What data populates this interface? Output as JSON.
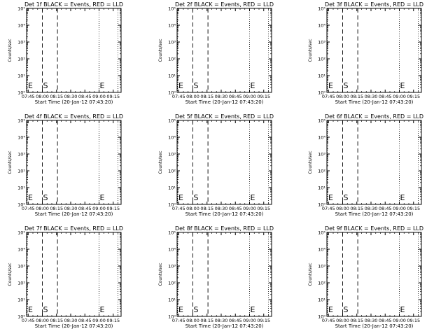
{
  "background": "#ffffff",
  "foreground": "#000000",
  "chart_data": [
    {
      "type": "line",
      "title": "Det 1f BLACK = Events, RED = LLD",
      "ylabel": "Counts/sec",
      "xlabel": "Start Time (20-Jan-12 07:43:20)",
      "x_ticks": [
        "07:45",
        "08:00",
        "08:15",
        "08:30",
        "08:45",
        "09:00",
        "09:15"
      ],
      "y_ticks": [
        "10⁰",
        "10¹",
        "10²",
        "10³",
        "10⁴",
        "10⁵"
      ],
      "y_scale": "log",
      "series": [],
      "markers": [
        {
          "label": "E",
          "time": "07:43"
        },
        {
          "label": "S",
          "time": "08:00"
        },
        {
          "label": "E",
          "time": "09:00"
        }
      ]
    },
    {
      "type": "line",
      "title": "Det 2f BLACK = Events, RED = LLD",
      "ylabel": "Counts/sec",
      "xlabel": "Start Time (20-Jan-12 07:43:20)",
      "x_ticks": [
        "07:45",
        "08:00",
        "08:15",
        "08:30",
        "08:45",
        "09:00",
        "09:15"
      ],
      "y_ticks": [
        "10⁰",
        "10¹",
        "10²",
        "10³",
        "10⁴",
        "10⁵"
      ],
      "y_scale": "log",
      "series": [],
      "markers": [
        {
          "label": "E",
          "time": "07:43"
        },
        {
          "label": "S",
          "time": "08:00"
        },
        {
          "label": "E",
          "time": "09:00"
        }
      ]
    },
    {
      "type": "line",
      "title": "Det 3f BLACK = Events, RED = LLD",
      "ylabel": "Counts/sec",
      "xlabel": "Start Time (20-Jan-12 07:43:20)",
      "x_ticks": [
        "07:45",
        "08:00",
        "08:15",
        "08:30",
        "08:45",
        "09:00",
        "09:15"
      ],
      "y_ticks": [
        "10⁰",
        "10¹",
        "10²",
        "10³",
        "10⁴",
        "10⁵"
      ],
      "y_scale": "log",
      "series": [],
      "markers": [
        {
          "label": "E",
          "time": "07:43"
        },
        {
          "label": "S",
          "time": "08:00"
        },
        {
          "label": "E",
          "time": "09:00"
        }
      ]
    },
    {
      "type": "line",
      "title": "Det 4f BLACK = Events, RED = LLD",
      "ylabel": "Counts/sec",
      "xlabel": "Start Time (20-Jan-12 07:43:20)",
      "x_ticks": [
        "07:45",
        "08:00",
        "08:15",
        "08:30",
        "08:45",
        "09:00",
        "09:15"
      ],
      "y_ticks": [
        "10⁰",
        "10¹",
        "10²",
        "10³",
        "10⁴",
        "10⁵"
      ],
      "y_scale": "log",
      "series": [],
      "markers": [
        {
          "label": "E",
          "time": "07:43"
        },
        {
          "label": "S",
          "time": "08:00"
        },
        {
          "label": "E",
          "time": "09:00"
        }
      ]
    },
    {
      "type": "line",
      "title": "Det 5f BLACK = Events, RED = LLD",
      "ylabel": "Counts/sec",
      "xlabel": "Start Time (20-Jan-12 07:43:20)",
      "x_ticks": [
        "07:45",
        "08:00",
        "08:15",
        "08:30",
        "08:45",
        "09:00",
        "09:15"
      ],
      "y_ticks": [
        "10⁰",
        "10¹",
        "10²",
        "10³",
        "10⁴",
        "10⁵"
      ],
      "y_scale": "log",
      "series": [],
      "markers": [
        {
          "label": "E",
          "time": "07:43"
        },
        {
          "label": "S",
          "time": "08:00"
        },
        {
          "label": "E",
          "time": "09:00"
        }
      ]
    },
    {
      "type": "line",
      "title": "Det 6f BLACK = Events, RED = LLD",
      "ylabel": "Counts/sec",
      "xlabel": "Start Time (20-Jan-12 07:43:20)",
      "x_ticks": [
        "07:45",
        "08:00",
        "08:15",
        "08:30",
        "08:45",
        "09:00",
        "09:15"
      ],
      "y_ticks": [
        "10⁰",
        "10¹",
        "10²",
        "10³",
        "10⁴",
        "10⁵"
      ],
      "y_scale": "log",
      "series": [],
      "markers": [
        {
          "label": "E",
          "time": "07:43"
        },
        {
          "label": "S",
          "time": "08:00"
        },
        {
          "label": "E",
          "time": "09:00"
        }
      ]
    },
    {
      "type": "line",
      "title": "Det 7f BLACK = Events, RED = LLD",
      "ylabel": "Counts/sec",
      "xlabel": "Start Time (20-Jan-12 07:43:20)",
      "x_ticks": [
        "07:45",
        "08:00",
        "08:15",
        "08:30",
        "08:45",
        "09:00",
        "09:15"
      ],
      "y_ticks": [
        "10⁰",
        "10¹",
        "10²",
        "10³",
        "10⁴",
        "10⁵"
      ],
      "y_scale": "log",
      "series": [],
      "markers": [
        {
          "label": "E",
          "time": "07:43"
        },
        {
          "label": "S",
          "time": "08:00"
        },
        {
          "label": "E",
          "time": "09:00"
        }
      ]
    },
    {
      "type": "line",
      "title": "Det 8f BLACK = Events, RED = LLD",
      "ylabel": "Counts/sec",
      "xlabel": "Start Time (20-Jan-12 07:43:20)",
      "x_ticks": [
        "07:45",
        "08:00",
        "08:15",
        "08:30",
        "08:45",
        "09:00",
        "09:15"
      ],
      "y_ticks": [
        "10⁰",
        "10¹",
        "10²",
        "10³",
        "10⁴",
        "10⁵"
      ],
      "y_scale": "log",
      "series": [],
      "markers": [
        {
          "label": "E",
          "time": "07:43"
        },
        {
          "label": "S",
          "time": "08:00"
        },
        {
          "label": "E",
          "time": "09:00"
        }
      ]
    },
    {
      "type": "line",
      "title": "Det 9f BLACK = Events, RED = LLD",
      "ylabel": "Counts/sec",
      "xlabel": "Start Time (20-Jan-12 07:43:20)",
      "x_ticks": [
        "07:45",
        "08:00",
        "08:15",
        "08:30",
        "08:45",
        "09:00",
        "09:15"
      ],
      "y_ticks": [
        "10⁰",
        "10¹",
        "10²",
        "10³",
        "10⁴",
        "10⁵"
      ],
      "y_scale": "log",
      "series": [],
      "markers": [
        {
          "label": "E",
          "time": "07:43"
        },
        {
          "label": "S",
          "time": "08:00"
        },
        {
          "label": "E",
          "time": "09:00"
        }
      ]
    }
  ]
}
